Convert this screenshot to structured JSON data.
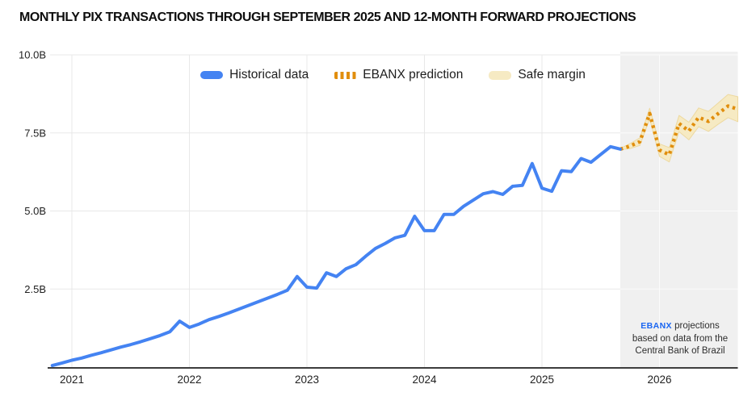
{
  "title": "MONTHLY PIX TRANSACTIONS THROUGH SEPTEMBER 2025 AND 12-MONTH FORWARD PROJECTIONS",
  "legend": {
    "items": [
      {
        "label": "Historical data",
        "type": "solid"
      },
      {
        "label": "EBANX prediction",
        "type": "dashed"
      },
      {
        "label": "Safe margin",
        "type": "band"
      }
    ]
  },
  "annotation": {
    "logo_text": "EBANX",
    "line1_rest": " projections",
    "line2": "based on data from the",
    "line3": "Central Bank of Brazil"
  },
  "colors": {
    "historical": "#4483F2",
    "prediction": "#E18E0D",
    "margin_fill": "#F6EAC3",
    "margin_edge": "#EDD9A0",
    "projection_bg": "#F0F0F0",
    "grid": "#E8E8E8",
    "grid_on_gray": "#FBFBFB",
    "axis_line": "#3D3D3D",
    "logo_blue": "#1A66F2"
  },
  "chart_data": {
    "type": "line",
    "title": "MONTHLY PIX TRANSACTIONS THROUGH SEPTEMBER 2025 AND 12-MONTH FORWARD PROJECTIONS",
    "unit": "transactions per month (billions)",
    "x_axis": {
      "tick_labels": [
        "2021",
        "2022",
        "2023",
        "2024",
        "2025",
        "2026"
      ],
      "tick_month_indices": [
        2,
        14,
        26,
        38,
        50,
        62
      ],
      "start_month": "2020-11",
      "end_month": "2026-09",
      "total_month_span": 70
    },
    "y_axis": {
      "tick_labels": [
        "2.5B",
        "5.0B",
        "7.5B",
        "10.0B"
      ],
      "tick_values": [
        2.5,
        5.0,
        7.5,
        10.0
      ],
      "range": [
        0,
        10
      ]
    },
    "grid": true,
    "legend_position": "top-center",
    "projection_region": {
      "start_index": 58,
      "covers": "Oct 2025 - Sep 2026"
    },
    "series": [
      {
        "name": "Historical data",
        "style": "solid",
        "start_month": "2020-11",
        "start_index": 0,
        "values": [
          0.05,
          0.13,
          0.22,
          0.29,
          0.38,
          0.46,
          0.55,
          0.64,
          0.72,
          0.81,
          0.91,
          1.01,
          1.13,
          1.47,
          1.27,
          1.38,
          1.52,
          1.62,
          1.73,
          1.85,
          1.97,
          2.09,
          2.21,
          2.33,
          2.46,
          2.9,
          2.56,
          2.53,
          3.02,
          2.9,
          3.15,
          3.28,
          3.55,
          3.8,
          3.96,
          4.14,
          4.22,
          4.83,
          4.37,
          4.37,
          4.89,
          4.89,
          5.15,
          5.35,
          5.55,
          5.62,
          5.53,
          5.79,
          5.82,
          6.52,
          5.73,
          5.63,
          6.29,
          6.26,
          6.68,
          6.56,
          6.81,
          7.06,
          6.98
        ]
      },
      {
        "name": "EBANX prediction",
        "style": "dotted",
        "start_month": "2025-09",
        "start_index": 58,
        "values": [
          6.98,
          7.08,
          7.22,
          8.12,
          6.95,
          6.8,
          7.8,
          7.56,
          8.0,
          7.87,
          8.12,
          8.36,
          8.26
        ],
        "safe_margin": [
          0.02,
          0.08,
          0.12,
          0.17,
          0.2,
          0.23,
          0.26,
          0.28,
          0.3,
          0.32,
          0.34,
          0.37,
          0.4
        ]
      }
    ]
  }
}
